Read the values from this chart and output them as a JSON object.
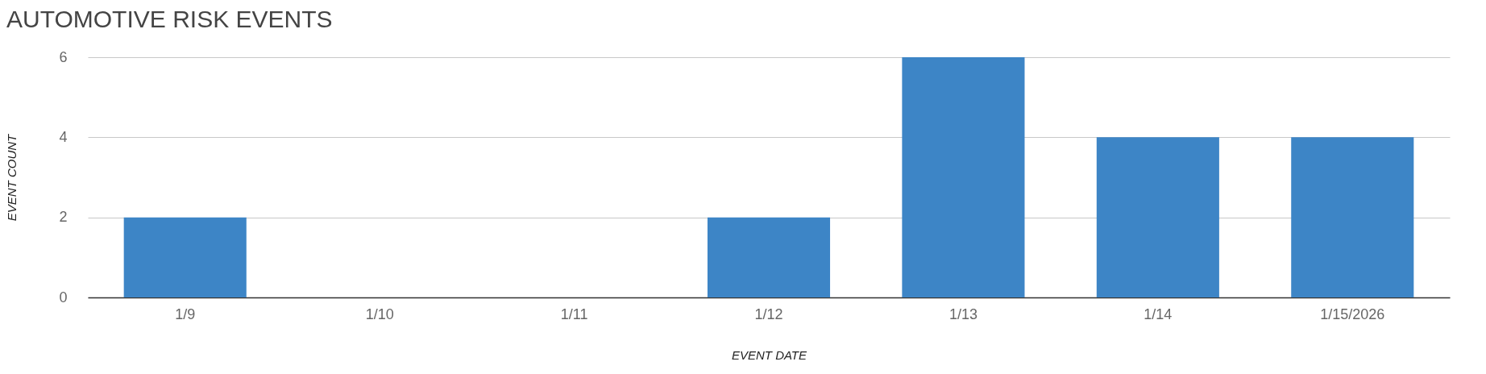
{
  "chart_data": {
    "type": "bar",
    "title": "AUTOMOTIVE RISK EVENTS",
    "xlabel": "EVENT DATE",
    "ylabel": "EVENT COUNT",
    "categories": [
      "1/9",
      "1/10",
      "1/11",
      "1/12",
      "1/13",
      "1/14",
      "1/15/2026"
    ],
    "values": [
      2,
      0,
      0,
      2,
      6,
      4,
      4
    ],
    "color": "#3d85c6",
    "ylim": [
      0,
      6
    ],
    "yticks": [
      0,
      2,
      4,
      6
    ],
    "grid": "y"
  }
}
